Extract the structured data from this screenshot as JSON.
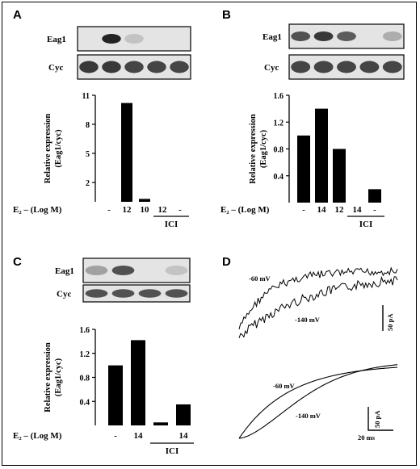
{
  "panels": {
    "A": {
      "letter": "A",
      "blot_labels": [
        "Eag1",
        "Cyc"
      ],
      "eag1_band_intensity": [
        0.0,
        0.95,
        0.25,
        0.0,
        0.0
      ],
      "cyc_band_intensity": [
        0.85,
        0.85,
        0.8,
        0.8,
        0.8
      ],
      "ylabel_line1": "Relative expression",
      "ylabel_line2": "(Eag1/cyc)",
      "xaxis_title": "E₂ – (Log M)",
      "group_label": "ICI"
    },
    "B": {
      "letter": "B",
      "blot_labels": [
        "Eag1",
        "Cyc"
      ],
      "eag1_band_intensity": [
        0.75,
        0.85,
        0.7,
        0.0,
        0.35
      ],
      "cyc_band_intensity": [
        0.8,
        0.8,
        0.8,
        0.8,
        0.8
      ],
      "ylabel_line1": "Relative expression",
      "ylabel_line2": "(Eag1/cyc)",
      "xaxis_title": "E₂ – (Log M)",
      "group_label": "ICI"
    },
    "C": {
      "letter": "C",
      "blot_labels": [
        "Eag1",
        "Cyc"
      ],
      "eag1_band_intensity": [
        0.4,
        0.75,
        0.0,
        0.25
      ],
      "cyc_band_intensity": [
        0.75,
        0.75,
        0.75,
        0.75
      ],
      "ylabel_line1": "Relative expression",
      "ylabel_line2": "(Eag1/cyc)",
      "xaxis_title": "E₂ – (Log M)",
      "group_label": "ICI"
    },
    "D": {
      "letter": "D",
      "upper_labels": [
        "-60 mV",
        "-140 mV"
      ],
      "upper_scale": "50 pA",
      "lower_labels": [
        "-60 mV",
        "-140 mV"
      ],
      "lower_scale_y": "50 pA",
      "lower_scale_x": "20 ms"
    }
  },
  "chart_data": [
    {
      "type": "bar",
      "panel": "A",
      "categories": [
        "-",
        "12",
        "10",
        "12",
        "-"
      ],
      "values": [
        0,
        10.2,
        0.3,
        0,
        0
      ],
      "yticks": [
        2,
        5,
        8,
        11
      ],
      "ylim": [
        0,
        11
      ],
      "ylabel": "Relative expression (Eag1/cyc)",
      "xlabel": "E₂ – (Log M)",
      "group": {
        "label": "ICI",
        "categories": [
          3,
          4
        ]
      }
    },
    {
      "type": "bar",
      "panel": "B",
      "categories": [
        "-",
        "14",
        "12",
        "14",
        "-"
      ],
      "values": [
        1.0,
        1.4,
        0.8,
        0,
        0.2
      ],
      "yticks": [
        0.4,
        0.8,
        1.2,
        1.6
      ],
      "ylim": [
        0,
        1.6
      ],
      "ylabel": "Relative expression (Eag1/cyc)",
      "xlabel": "E₂ – (Log M)",
      "group": {
        "label": "ICI",
        "categories": [
          3,
          4
        ]
      }
    },
    {
      "type": "bar",
      "panel": "C",
      "categories": [
        "-",
        "14",
        "",
        "14"
      ],
      "values": [
        1.0,
        1.42,
        0.05,
        0.35
      ],
      "yticks": [
        0.4,
        0.8,
        1.2,
        1.6
      ],
      "ylim": [
        0,
        1.6
      ],
      "ylabel": "Relative expression (Eag1/cyc)",
      "xlabel": "E₂ – (Log M)",
      "group": {
        "label": "ICI",
        "categories": [
          2,
          3
        ]
      }
    }
  ]
}
